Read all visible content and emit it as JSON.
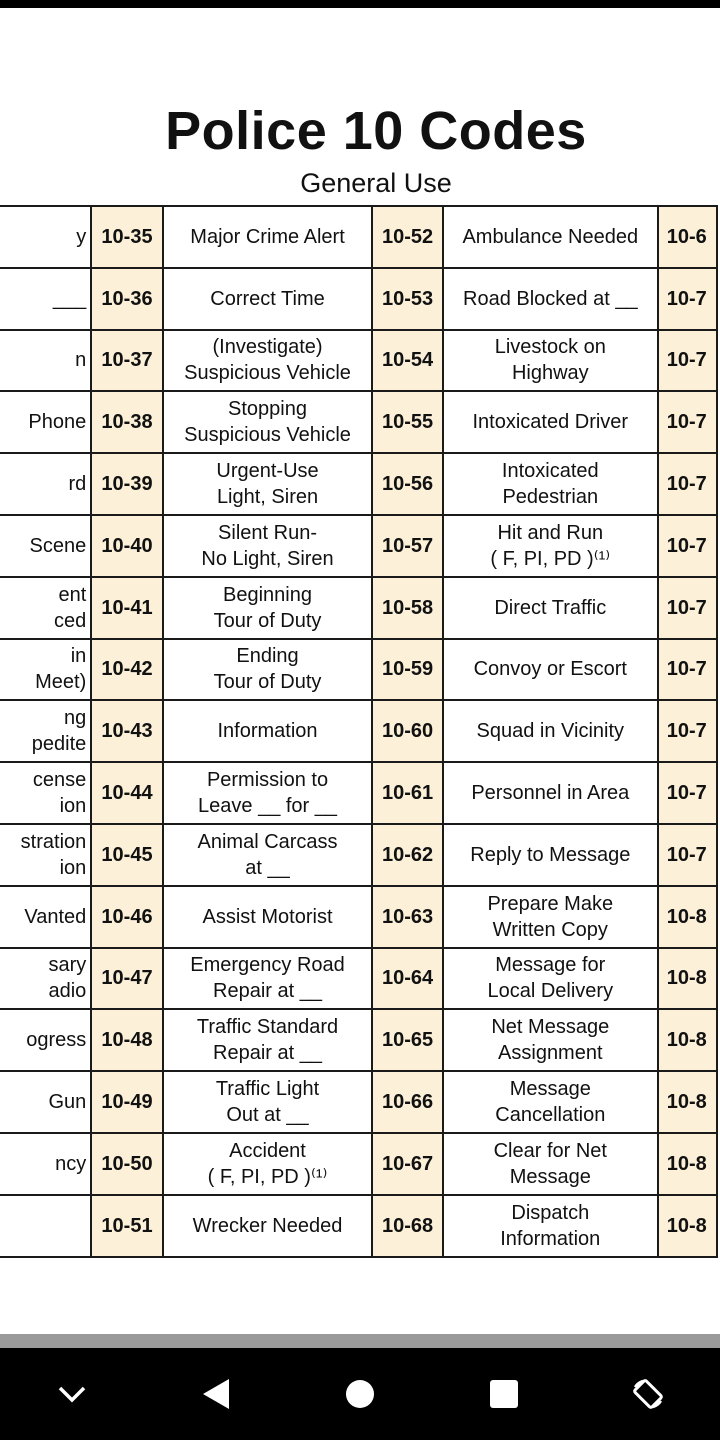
{
  "title": "Police 10 Codes",
  "subtitle": "General Use",
  "rows": [
    {
      "left": "y",
      "c1": "10-35",
      "d1": "Major Crime Alert",
      "c2": "10-52",
      "d2": "Ambulance Needed",
      "c3": "10-6"
    },
    {
      "left": "___",
      "c1": "10-36",
      "d1": "Correct Time",
      "c2": "10-53",
      "d2": "Road Blocked at __",
      "c3": "10-7"
    },
    {
      "left": "n",
      "c1": "10-37",
      "d1": "(Investigate)\nSuspicious Vehicle",
      "c2": "10-54",
      "d2": "Livestock on\nHighway",
      "c3": "10-7"
    },
    {
      "left": "Phone",
      "c1": "10-38",
      "d1": "Stopping\nSuspicious Vehicle",
      "c2": "10-55",
      "d2": "Intoxicated Driver",
      "c3": "10-7"
    },
    {
      "left": "rd",
      "c1": "10-39",
      "d1": "Urgent-Use\nLight, Siren",
      "c2": "10-56",
      "d2": "Intoxicated\nPedestrian",
      "c3": "10-7"
    },
    {
      "left": "Scene",
      "c1": "10-40",
      "d1": "Silent Run-\nNo Light, Siren",
      "c2": "10-57",
      "d2": "Hit and Run\n( F, PI, PD )⁽¹⁾",
      "c3": "10-7"
    },
    {
      "left": "ent\nced",
      "c1": "10-41",
      "d1": "Beginning\nTour of Duty",
      "c2": "10-58",
      "d2": "Direct Traffic",
      "c3": "10-7"
    },
    {
      "left": "in\nMeet)",
      "c1": "10-42",
      "d1": "Ending\nTour of Duty",
      "c2": "10-59",
      "d2": "Convoy or Escort",
      "c3": "10-7"
    },
    {
      "left": "ng\npedite",
      "c1": "10-43",
      "d1": "Information",
      "c2": "10-60",
      "d2": "Squad in Vicinity",
      "c3": "10-7"
    },
    {
      "left": "cense\nion",
      "c1": "10-44",
      "d1": "Permission to\nLeave __ for __",
      "c2": "10-61",
      "d2": "Personnel in Area",
      "c3": "10-7"
    },
    {
      "left": "stration\nion",
      "c1": "10-45",
      "d1": "Animal Carcass\nat __",
      "c2": "10-62",
      "d2": "Reply to Message",
      "c3": "10-7"
    },
    {
      "left": "Vanted",
      "c1": "10-46",
      "d1": "Assist Motorist",
      "c2": "10-63",
      "d2": "Prepare Make\nWritten Copy",
      "c3": "10-8"
    },
    {
      "left": "sary\nadio",
      "c1": "10-47",
      "d1": "Emergency Road\nRepair at __",
      "c2": "10-64",
      "d2": "Message for\nLocal Delivery",
      "c3": "10-8"
    },
    {
      "left": "ogress",
      "c1": "10-48",
      "d1": "Traffic Standard\nRepair at __",
      "c2": "10-65",
      "d2": "Net Message\nAssignment",
      "c3": "10-8"
    },
    {
      "left": "Gun",
      "c1": "10-49",
      "d1": "Traffic Light\nOut at __",
      "c2": "10-66",
      "d2": "Message\nCancellation",
      "c3": "10-8"
    },
    {
      "left": "ncy",
      "c1": "10-50",
      "d1": "Accident\n( F, PI, PD )⁽¹⁾",
      "c2": "10-67",
      "d2": "Clear for Net\nMessage",
      "c3": "10-8"
    },
    {
      "left": "",
      "c1": "10-51",
      "d1": "Wrecker Needed",
      "c2": "10-68",
      "d2": "Dispatch\nInformation",
      "c3": "10-8"
    }
  ],
  "nav": {
    "icons": [
      "chevron-down-icon",
      "back-icon",
      "home-icon",
      "recents-icon",
      "rotate-icon"
    ]
  },
  "colors": {
    "code_bg": "#fcf1d8",
    "nav_bg": "#000000"
  }
}
